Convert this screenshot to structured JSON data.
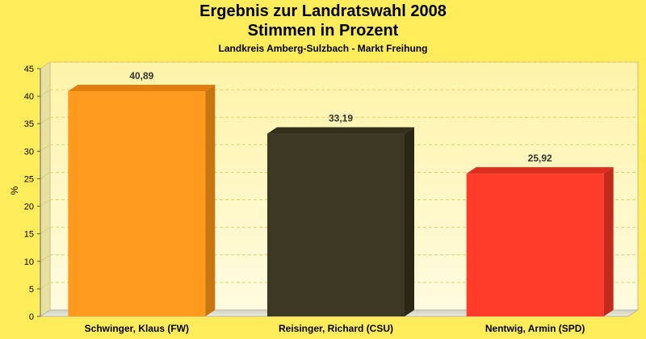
{
  "chart_data": {
    "type": "bar",
    "title": "Ergebnis zur Landratswahl 2008",
    "subtitle": "Stimmen in Prozent",
    "subtitle2": "Landkreis Amberg-Sulzbach - Markt Freihung",
    "ylabel": "%",
    "xlabel": "",
    "ylim": [
      0,
      45
    ],
    "yticks": [
      "0",
      "5",
      "10",
      "15",
      "20",
      "25",
      "30",
      "35",
      "40",
      "45"
    ],
    "grid": true,
    "categories": [
      "Schwinger, Klaus (FW)",
      "Reisinger, Richard (CSU)",
      "Nentwig, Armin (SPD)"
    ],
    "values": [
      40.89,
      33.19,
      25.92
    ],
    "value_labels": [
      "40,89",
      "33,19",
      "25,92"
    ],
    "colors": [
      "#ff9a1e",
      "#3c3824",
      "#ff3b2a"
    ],
    "side_colors": [
      "#c7750f",
      "#2a2714",
      "#c22a1c"
    ],
    "top_colors": [
      "#e07f10",
      "#322f1b",
      "#dd2e20"
    ]
  }
}
